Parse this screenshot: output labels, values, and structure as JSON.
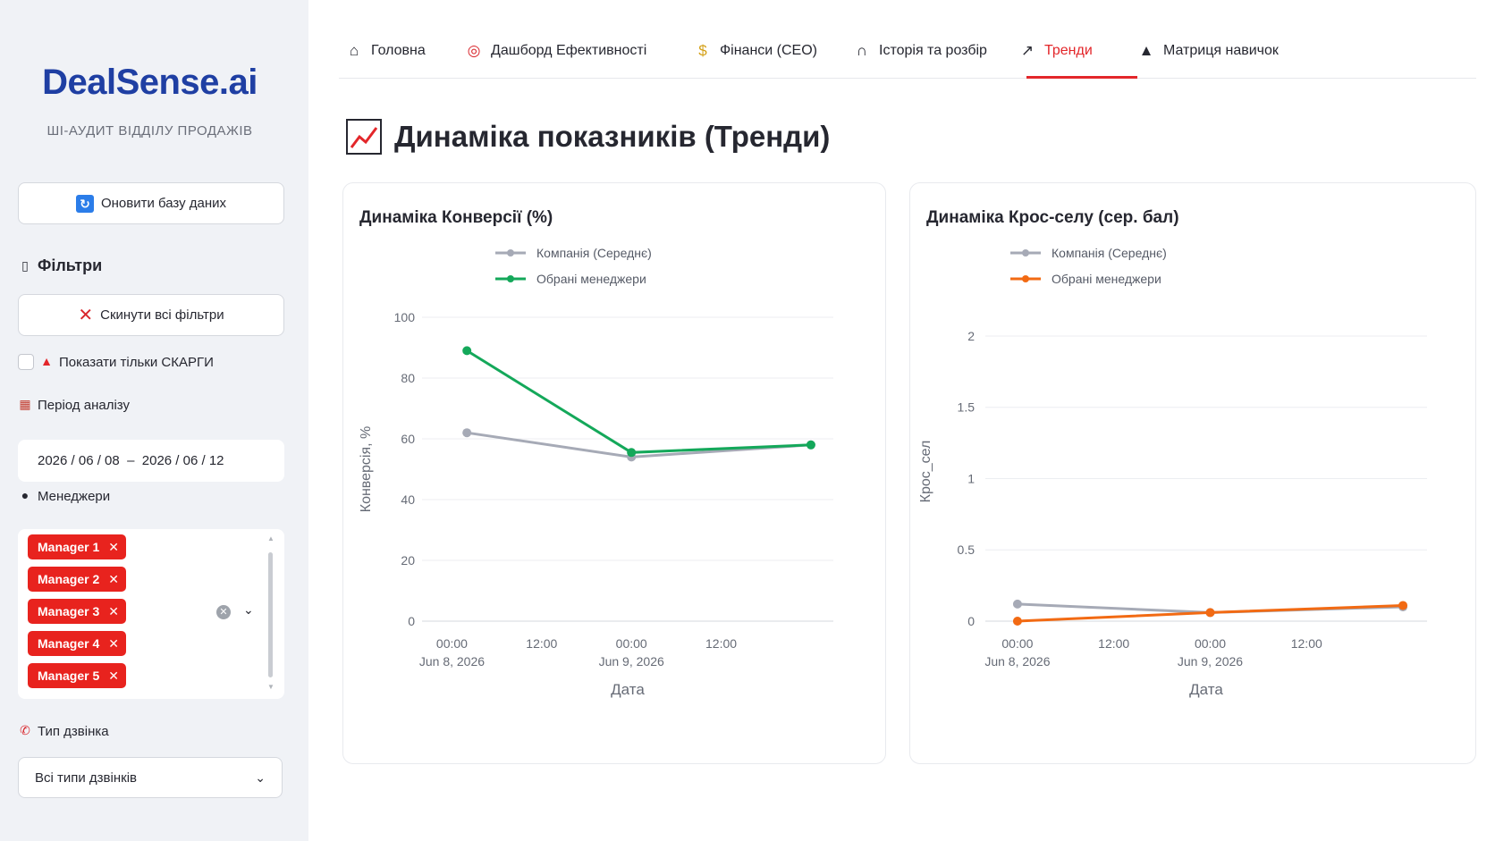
{
  "sidebar": {
    "brand": "DealSense.ai",
    "tagline": "ШІ-АУДИТ ВІДДІЛУ ПРОДАЖІВ",
    "refresh_label": "Оновити базу даних",
    "filters_heading": "Фільтри",
    "reset_label": "Скинути всі фільтри",
    "complaints_label": "Показати тільки СКАРГИ",
    "period_label": "Період аналізу",
    "date_range": "2026 / 06 / 08  –  2026 / 06 / 12",
    "managers_label": "Менеджери",
    "managers": [
      "Manager 1",
      "Manager 2",
      "Manager 3",
      "Manager 4",
      "Manager 5"
    ],
    "call_type_label": "Тип дзвінка",
    "call_type_value": "Всі типи дзвінків"
  },
  "tabs": [
    {
      "label": "Головна",
      "icon": "house-icon"
    },
    {
      "label": "Дашборд Ефективності",
      "icon": "target-icon"
    },
    {
      "label": "Фінанси (CEO)",
      "icon": "money-bag-icon"
    },
    {
      "label": "Історія та розбір",
      "icon": "headphones-icon"
    },
    {
      "label": "Тренди",
      "icon": "chart-icon",
      "active": true
    },
    {
      "label": "Матриця навичок",
      "icon": "graduation-cap-icon"
    }
  ],
  "page_title": "Динаміка показників (Тренди)",
  "colors": {
    "accent": "#e3262a",
    "company_line": "#a6aab6",
    "conversion_line": "#14a85a",
    "crosssell_line": "#f26a13",
    "brand": "#1f3fa3"
  },
  "chart_data": [
    {
      "type": "line",
      "title": "Динаміка Конверсії (%)",
      "xlabel": "Дата",
      "ylabel": "Конверсія, %",
      "ylim": [
        0,
        100
      ],
      "yticks": [
        0,
        20,
        40,
        60,
        80,
        100
      ],
      "xticks": [
        {
          "value": "2026-06-08T00:00",
          "label": [
            "00:00",
            "Jun 8, 2026"
          ]
        },
        {
          "value": "2026-06-08T12:00",
          "label": [
            "12:00"
          ]
        },
        {
          "value": "2026-06-09T00:00",
          "label": [
            "00:00",
            "Jun 9, 2026"
          ]
        },
        {
          "value": "2026-06-09T12:00",
          "label": [
            "12:00"
          ]
        }
      ],
      "xlim": [
        "2026-06-07T20:00",
        "2026-06-10T03:00"
      ],
      "grid": true,
      "legend": "top-center",
      "series": [
        {
          "name": "Компанія (Середнє)",
          "color": "#a6aab6",
          "points": [
            {
              "x": "2026-06-08T02:00",
              "y": 62
            },
            {
              "x": "2026-06-09T00:00",
              "y": 54
            },
            {
              "x": "2026-06-10T00:00",
              "y": 58
            }
          ]
        },
        {
          "name": "Обрані менеджери",
          "color": "#14a85a",
          "points": [
            {
              "x": "2026-06-08T02:00",
              "y": 89
            },
            {
              "x": "2026-06-09T00:00",
              "y": 55.5
            },
            {
              "x": "2026-06-10T00:00",
              "y": 58
            }
          ]
        }
      ]
    },
    {
      "type": "line",
      "title": "Динаміка Крос-селу (сер. бал)",
      "xlabel": "Дата",
      "ylabel": "Крос_сел",
      "ylim": [
        0,
        2.1
      ],
      "yticks": [
        0,
        0.5,
        1,
        1.5,
        2
      ],
      "xticks": [
        {
          "value": "2026-06-08T00:00",
          "label": [
            "00:00",
            "Jun 8, 2026"
          ]
        },
        {
          "value": "2026-06-08T12:00",
          "label": [
            "12:00"
          ]
        },
        {
          "value": "2026-06-09T00:00",
          "label": [
            "00:00",
            "Jun 9, 2026"
          ]
        },
        {
          "value": "2026-06-09T12:00",
          "label": [
            "12:00"
          ]
        }
      ],
      "xlim": [
        "2026-06-07T20:00",
        "2026-06-10T03:00"
      ],
      "grid": true,
      "legend": "top-center",
      "series": [
        {
          "name": "Компанія (Середнє)",
          "color": "#a6aab6",
          "points": [
            {
              "x": "2026-06-08T00:00",
              "y": 0.12
            },
            {
              "x": "2026-06-09T00:00",
              "y": 0.06
            },
            {
              "x": "2026-06-10T00:00",
              "y": 0.1
            }
          ]
        },
        {
          "name": "Обрані менеджери",
          "color": "#f26a13",
          "points": [
            {
              "x": "2026-06-08T00:00",
              "y": 0.0
            },
            {
              "x": "2026-06-09T00:00",
              "y": 0.06
            },
            {
              "x": "2026-06-10T00:00",
              "y": 0.11
            }
          ]
        }
      ]
    }
  ]
}
